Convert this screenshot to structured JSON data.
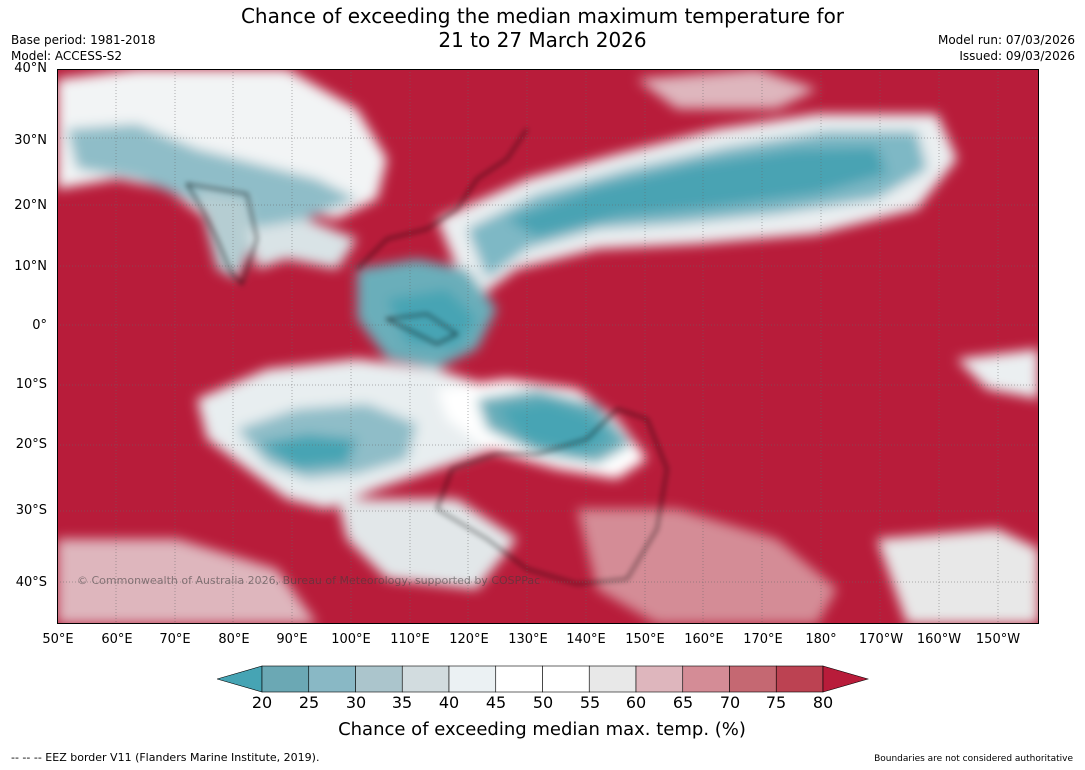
{
  "header": {
    "title_line1": "Chance of exceeding the median maximum temperature for",
    "title_line2": "21 to 27 March 2026",
    "base_period": "Base period: 1981-2018",
    "model": "Model: ACCESS-S2",
    "model_run": "Model run: 07/03/2026",
    "issued": "Issued: 09/03/2026"
  },
  "map": {
    "lat_labels": [
      "40°N",
      "30°N",
      "20°N",
      "10°N",
      "0°",
      "10°S",
      "20°S",
      "30°S",
      "40°S"
    ],
    "lon_labels": [
      "50°E",
      "60°E",
      "70°E",
      "80°E",
      "90°E",
      "100°E",
      "110°E",
      "120°E",
      "130°E",
      "140°E",
      "150°E",
      "160°E",
      "170°E",
      "180°",
      "170°W",
      "160°W",
      "150°W"
    ],
    "background_color": "#b81c3a",
    "copyright": "© Commonwealth of Australia 2026, Bureau of Meteorology, supported by COSPPac"
  },
  "colorbar": {
    "ticks": [
      "20",
      "25",
      "30",
      "35",
      "40",
      "45",
      "50",
      "55",
      "60",
      "65",
      "70",
      "75",
      "80"
    ],
    "colors": [
      "#46a4b4",
      "#6ba8b4",
      "#89b8c5",
      "#abc5cc",
      "#d2dcdf",
      "#ebf1f3",
      "#ffffff",
      "#ffffff",
      "#e8e8e8",
      "#deb6bd",
      "#d48c96",
      "#c56872",
      "#bc4252",
      "#b81c3a"
    ],
    "label": "Chance of exceeding median max. temp. (%)"
  },
  "footer": {
    "eez_note": "--  --  -- EEZ border V11 (Flanders Marine Institute, 2019).",
    "boundaries_note": "Boundaries are not considered authoritative"
  }
}
